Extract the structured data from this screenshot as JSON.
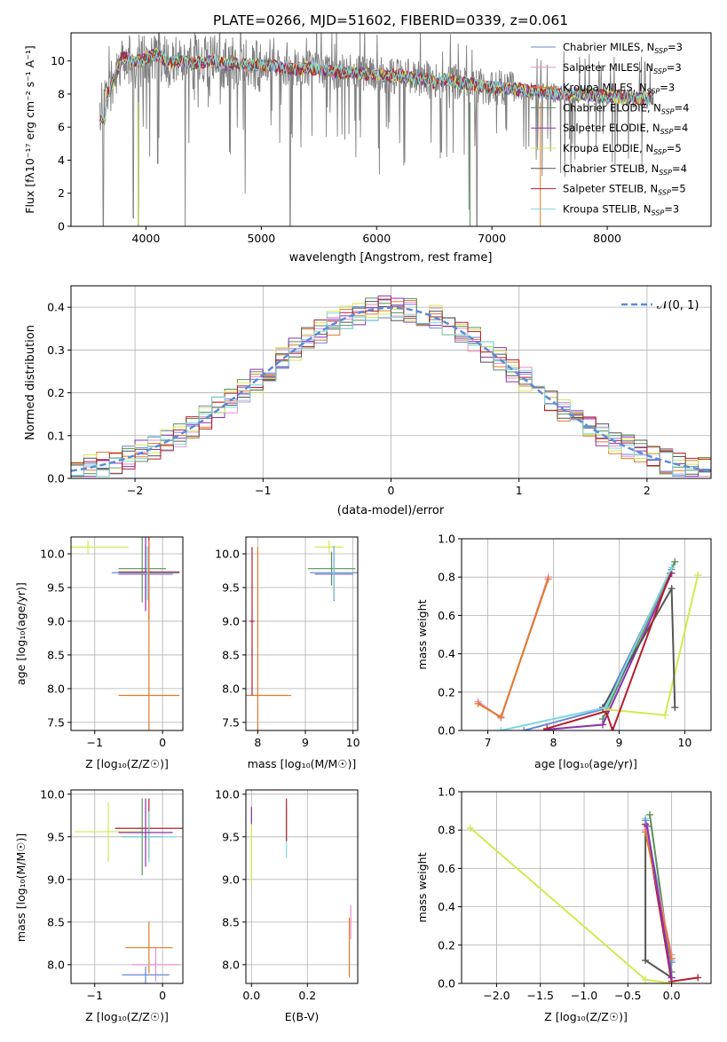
{
  "figure_title": "PLATE=0266, MJD=51602, FIBERID=0339, z=0.061",
  "models": [
    {
      "name": "Chabrier MILES",
      "nssp": "3",
      "color": "#6b87d6"
    },
    {
      "name": "Salpeter MILES",
      "nssp": "3",
      "color": "#e88dc9"
    },
    {
      "name": "Kroupa MILES",
      "nssp": "3",
      "color": "#e07b2c"
    },
    {
      "name": "Chabrier ELODIE",
      "nssp": "4",
      "color": "#5a8f5a"
    },
    {
      "name": "Salpeter ELODIE",
      "nssp": "4",
      "color": "#8e2fb0"
    },
    {
      "name": "Kroupa ELODIE",
      "nssp": "5",
      "color": "#d4e84f"
    },
    {
      "name": "Chabrier STELIB",
      "nssp": "4",
      "color": "#555555"
    },
    {
      "name": "Salpeter STELIB",
      "nssp": "5",
      "color": "#b51f2a"
    },
    {
      "name": "Kroupa STELIB",
      "nssp": "3",
      "color": "#7fd6de"
    }
  ],
  "normal_label": "𝒩(0, 1)",
  "chart_data": [
    {
      "id": "spectrum",
      "type": "line",
      "xlabel": "wavelength [Angstrom, rest frame]",
      "ylabel": "Flux [fλ10⁻¹⁷ erg cm⁻² s⁻¹ A⁻¹]",
      "xlim": [
        3350,
        8900
      ],
      "ylim": [
        0,
        11.7
      ],
      "xticks": [
        4000,
        5000,
        6000,
        7000,
        8000
      ],
      "yticks": [
        0,
        2,
        4,
        6,
        8,
        10
      ],
      "legend_position": "top-right",
      "grid": false,
      "data_x": [
        3600,
        3700,
        3800,
        3900,
        4000,
        4100,
        4200,
        4300,
        4400,
        4500,
        4600,
        4700,
        4800,
        4900,
        5000,
        5100,
        5200,
        5300,
        5400,
        5500,
        5600,
        5700,
        5800,
        5900,
        6000,
        6100,
        6200,
        6300,
        6400,
        6500,
        6600,
        6700,
        6800,
        6900,
        7000,
        7100,
        7200,
        7300,
        7400,
        7500,
        7600,
        7700,
        7800,
        7900,
        8000,
        8100,
        8200,
        8300,
        8400
      ],
      "data_y": [
        7.0,
        8.5,
        10.3,
        9.9,
        10.2,
        10.4,
        9.9,
        10.0,
        9.8,
        9.9,
        10.0,
        9.8,
        9.9,
        9.7,
        9.8,
        9.7,
        9.6,
        9.5,
        9.6,
        9.5,
        9.4,
        9.3,
        9.3,
        9.2,
        9.2,
        9.1,
        9.1,
        9.0,
        8.9,
        8.7,
        8.9,
        8.7,
        8.6,
        8.5,
        8.4,
        8.3,
        8.3,
        8.2,
        8.2,
        8.1,
        8.0,
        8.0,
        8.0,
        7.9,
        7.9,
        7.8,
        7.8,
        7.7,
        7.7
      ],
      "data_dips": [
        [
          3630,
          0
        ],
        [
          3890,
          0.5
        ],
        [
          3935,
          0
        ],
        [
          4102,
          3.8
        ],
        [
          4340,
          0
        ],
        [
          4860,
          2.0
        ],
        [
          5250,
          0
        ],
        [
          6563,
          4.5
        ],
        [
          6800,
          1.0
        ],
        [
          6870,
          0
        ]
      ],
      "model_dips": [
        [
          3933,
          0
        ],
        [
          6810,
          0
        ],
        [
          7420,
          0
        ]
      ]
    },
    {
      "id": "residuals",
      "type": "line",
      "xlabel": "(data-model)/error",
      "ylabel": "Normed distribution",
      "xlim": [
        -2.5,
        2.5
      ],
      "ylim": [
        0,
        0.45
      ],
      "xticks": [
        -2,
        -1,
        0,
        1,
        2
      ],
      "yticks": [
        0.0,
        0.1,
        0.2,
        0.3,
        0.4
      ],
      "grid": true,
      "legend_position": "top-right",
      "bin_width": 0.1,
      "bin_start": -2.5
    },
    {
      "id": "age-vs-Z",
      "type": "scatter",
      "xlabel": "Z [log₁₀(Z/Z☉)]",
      "ylabel": "age  [log₁₀(age/yr)]",
      "xlim": [
        -1.35,
        0.3
      ],
      "ylim": [
        7.38,
        10.25
      ],
      "xticks": [
        -1,
        0
      ],
      "yticks": [
        7.5,
        8.0,
        8.5,
        9.0,
        9.5,
        10.0
      ],
      "grid": true,
      "points": [
        {
          "model": 5,
          "x": -1.1,
          "y": 10.1,
          "xerr": 0.6,
          "yerr": 0.1
        },
        {
          "model": 0,
          "x": -0.25,
          "y": 9.72,
          "xerr": 0.5,
          "yerr": 0.4
        },
        {
          "model": 3,
          "x": -0.3,
          "y": 9.78,
          "xerr": 0.35,
          "yerr": 0.5
        },
        {
          "model": 4,
          "x": -0.25,
          "y": 9.7,
          "xerr": 0.4,
          "yerr": 0.55
        },
        {
          "model": 7,
          "x": -0.2,
          "y": 9.73,
          "xerr": 0.45,
          "yerr": 0.7
        },
        {
          "model": 8,
          "x": -0.22,
          "y": 9.71,
          "xerr": 0.45,
          "yerr": 0.4
        },
        {
          "model": 2,
          "x": -0.2,
          "y": 7.9,
          "xerr": 0.45,
          "yerr": 2.3
        }
      ]
    },
    {
      "id": "age-vs-mass",
      "type": "scatter",
      "xlabel": "mass [log₁₀(M/M☉)]",
      "ylabel": "",
      "xlim": [
        7.75,
        10.1
      ],
      "ylim": [
        7.38,
        10.25
      ],
      "xticks": [
        8,
        9,
        10
      ],
      "yticks": [
        7.5,
        8.0,
        8.5,
        9.0,
        9.5,
        10.0
      ],
      "grid": true,
      "points": [
        {
          "model": 5,
          "x": 9.5,
          "y": 10.1,
          "xerr": 0.3,
          "yerr": 0.1
        },
        {
          "model": 3,
          "x": 9.55,
          "y": 9.78,
          "xerr": 0.5,
          "yerr": 0.25
        },
        {
          "model": 0,
          "x": 9.6,
          "y": 9.72,
          "xerr": 0.5,
          "yerr": 0.4
        },
        {
          "model": 4,
          "x": 9.6,
          "y": 9.7,
          "xerr": 0.4,
          "yerr": 0.4
        },
        {
          "model": 8,
          "x": 9.6,
          "y": 9.71,
          "xerr": 0.4,
          "yerr": 0.4
        },
        {
          "model": 2,
          "x": 8.0,
          "y": 7.9,
          "xerr": 0.7,
          "yerr": 2.2
        },
        {
          "model": 7,
          "x": 7.88,
          "y": 9.0,
          "xerr": 0.05,
          "yerr": 1.1
        }
      ]
    },
    {
      "id": "weight-vs-age",
      "type": "line",
      "xlabel": "age  [log₁₀(age/yr)]",
      "ylabel": "mass weight",
      "xlim": [
        6.6,
        10.4
      ],
      "ylim": [
        0,
        1.0
      ],
      "xticks": [
        7,
        8,
        9,
        10
      ],
      "yticks": [
        0.0,
        0.2,
        0.4,
        0.6,
        0.8,
        1.0
      ],
      "grid": true,
      "series": [
        {
          "model": 0,
          "x": [
            7.55,
            8.75,
            9.8
          ],
          "y": [
            0.0,
            0.11,
            0.84
          ]
        },
        {
          "model": 1,
          "x": [
            6.85,
            7.2,
            7.92
          ],
          "y": [
            0.15,
            0.065,
            0.8
          ]
        },
        {
          "model": 2,
          "x": [
            6.85,
            7.2,
            7.92
          ],
          "y": [
            0.14,
            0.07,
            0.79
          ]
        },
        {
          "model": 3,
          "x": [
            8.75,
            9.85
          ],
          "y": [
            0.06,
            0.88
          ]
        },
        {
          "model": 4,
          "x": [
            7.9,
            8.75,
            9.8
          ],
          "y": [
            0.005,
            0.03,
            0.82
          ]
        },
        {
          "model": 5,
          "x": [
            8.8,
            9.7,
            10.2
          ],
          "y": [
            0.11,
            0.08,
            0.81
          ]
        },
        {
          "model": 6,
          "x": [
            8.75,
            9.8,
            9.85
          ],
          "y": [
            0.12,
            0.74,
            0.12
          ]
        },
        {
          "model": 7,
          "x": [
            7.9,
            8.8,
            8.9,
            9.78
          ],
          "y": [
            0.01,
            0.1,
            0.0,
            0.82
          ]
        },
        {
          "model": 8,
          "x": [
            7.2,
            8.8,
            9.8
          ],
          "y": [
            0.0,
            0.12,
            0.85
          ]
        }
      ]
    },
    {
      "id": "mass-vs-Z",
      "type": "scatter",
      "xlabel": "Z [log₁₀(Z/Z☉)]",
      "ylabel": "mass [log₁₀(M/M☉)]",
      "xlim": [
        -1.35,
        0.3
      ],
      "ylim": [
        7.78,
        10.05
      ],
      "xticks": [
        -1,
        0
      ],
      "yticks": [
        8.0,
        8.5,
        9.0,
        9.5,
        10.0
      ],
      "grid": true,
      "points": [
        {
          "model": 5,
          "x": -0.8,
          "y": 9.56,
          "xerr": 0.5,
          "yerr": 0.35
        },
        {
          "model": 3,
          "x": -0.3,
          "y": 9.5,
          "xerr": 0.3,
          "yerr": 0.45
        },
        {
          "model": 7,
          "x": -0.2,
          "y": 9.6,
          "xerr": 0.5,
          "yerr": 0.35
        },
        {
          "model": 8,
          "x": -0.2,
          "y": 9.5,
          "xerr": 0.4,
          "yerr": 0.3
        },
        {
          "model": 4,
          "x": -0.25,
          "y": 9.55,
          "xerr": 0.4,
          "yerr": 0.4
        },
        {
          "model": 2,
          "x": -0.2,
          "y": 8.2,
          "xerr": 0.35,
          "yerr": 0.3
        },
        {
          "model": 1,
          "x": -0.1,
          "y": 8.0,
          "xerr": 0.35,
          "yerr": 0.2
        },
        {
          "model": 0,
          "x": -0.25,
          "y": 7.88,
          "xerr": 0.35,
          "yerr": 0.1
        }
      ]
    },
    {
      "id": "mass-vs-EBV",
      "type": "scatter",
      "xlabel": "E(B-V)",
      "ylabel": "",
      "xlim": [
        -0.02,
        0.38
      ],
      "ylim": [
        7.78,
        10.05
      ],
      "xticks": [
        0.0,
        0.2
      ],
      "yticks": [
        8.0,
        8.5,
        9.0,
        9.5,
        10.0
      ],
      "grid": true,
      "points": [
        {
          "model": 5,
          "x": 0.0,
          "y": 9.4,
          "xerr": 0,
          "yerr": 0.45
        },
        {
          "model": 4,
          "x": 0.0,
          "y": 9.75,
          "xerr": 0,
          "yerr": 0.1
        },
        {
          "model": 8,
          "x": 0.125,
          "y": 9.55,
          "xerr": 0,
          "yerr": 0.3
        },
        {
          "model": 7,
          "x": 0.125,
          "y": 9.7,
          "xerr": 0,
          "yerr": 0.25
        },
        {
          "model": 2,
          "x": 0.35,
          "y": 8.2,
          "xerr": 0,
          "yerr": 0.35
        },
        {
          "model": 1,
          "x": 0.355,
          "y": 8.5,
          "xerr": 0,
          "yerr": 0.2
        }
      ]
    },
    {
      "id": "weight-vs-Z",
      "type": "line",
      "xlabel": "Z [log₁₀(Z/Z☉)]",
      "ylabel": "mass weight",
      "xlim": [
        -2.4,
        0.45
      ],
      "ylim": [
        0,
        1.0
      ],
      "xticks": [
        -2.0,
        -1.5,
        -1.0,
        -0.5,
        0.0
      ],
      "yticks": [
        0.0,
        0.2,
        0.4,
        0.6,
        0.8,
        1.0
      ],
      "grid": true,
      "series": [
        {
          "model": 5,
          "x": [
            -2.3,
            -0.3,
            0.0
          ],
          "y": [
            0.81,
            0.02,
            0.0
          ]
        },
        {
          "model": 6,
          "x": [
            -0.3,
            -0.3,
            0.0
          ],
          "y": [
            0.83,
            0.12,
            0.03
          ]
        },
        {
          "model": 7,
          "x": [
            -0.3,
            0.0,
            0.3
          ],
          "y": [
            0.83,
            0.01,
            0.03
          ]
        },
        {
          "model": 3,
          "x": [
            -0.25,
            0.0
          ],
          "y": [
            0.88,
            0.06
          ]
        },
        {
          "model": 8,
          "x": [
            -0.3,
            0.0
          ],
          "y": [
            0.86,
            0.12
          ]
        },
        {
          "model": 0,
          "x": [
            -0.3,
            0.0
          ],
          "y": [
            0.85,
            0.11
          ]
        },
        {
          "model": 1,
          "x": [
            -0.3,
            0.0
          ],
          "y": [
            0.8,
            0.15
          ]
        },
        {
          "model": 2,
          "x": [
            -0.3,
            0.0
          ],
          "y": [
            0.79,
            0.13
          ]
        },
        {
          "model": 4,
          "x": [
            -0.28,
            0.0
          ],
          "y": [
            0.82,
            0.03
          ]
        }
      ]
    }
  ]
}
